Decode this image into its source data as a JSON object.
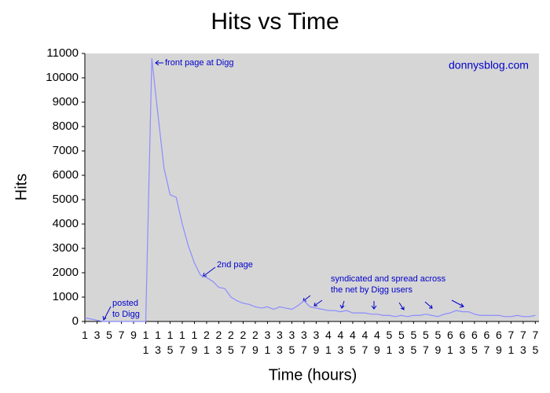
{
  "chart_data": {
    "type": "line",
    "title": "Hits vs Time",
    "x_label": "Time (hours)",
    "y_label": "Hits",
    "x": [
      1,
      2,
      3,
      4,
      5,
      6,
      7,
      8,
      9,
      10,
      11,
      12,
      13,
      14,
      15,
      16,
      17,
      18,
      19,
      20,
      21,
      22,
      23,
      24,
      25,
      26,
      27,
      28,
      29,
      30,
      31,
      32,
      33,
      34,
      35,
      36,
      37,
      38,
      39,
      40,
      41,
      42,
      43,
      44,
      45,
      46,
      47,
      48,
      49,
      50,
      51,
      52,
      53,
      54,
      55,
      56,
      57,
      58,
      59,
      60,
      61,
      62,
      63,
      64,
      65,
      66,
      67,
      68,
      69,
      70,
      71,
      72,
      73,
      74,
      75
    ],
    "values": [
      150,
      100,
      50,
      0,
      0,
      0,
      0,
      0,
      0,
      0,
      0,
      10800,
      8500,
      6300,
      5200,
      5100,
      4000,
      3100,
      2400,
      1900,
      1800,
      1650,
      1400,
      1350,
      1000,
      850,
      750,
      700,
      600,
      550,
      600,
      500,
      600,
      550,
      500,
      650,
      850,
      600,
      550,
      500,
      450,
      450,
      400,
      450,
      350,
      350,
      350,
      300,
      300,
      250,
      250,
      200,
      250,
      200,
      250,
      250,
      300,
      250,
      200,
      300,
      350,
      450,
      400,
      400,
      300,
      250,
      250,
      250,
      250,
      200,
      200,
      250,
      200,
      200,
      250
    ],
    "color": "#8c8cff",
    "xlim": [
      1,
      75.6
    ],
    "ylim": [
      0,
      11000
    ],
    "xticks": [
      1,
      3,
      5,
      7,
      9,
      11,
      13,
      15,
      17,
      19,
      21,
      23,
      25,
      27,
      29,
      31,
      33,
      35,
      37,
      39,
      41,
      43,
      45,
      47,
      49,
      51,
      53,
      55,
      57,
      59,
      61,
      63,
      65,
      67,
      69,
      71,
      73,
      75
    ],
    "yticks": [
      0,
      1000,
      2000,
      3000,
      4000,
      5000,
      6000,
      7000,
      8000,
      9000,
      10000,
      11000
    ],
    "grid": false,
    "annotations": [
      {
        "lines": [
          "front page at Digg"
        ]
      },
      {
        "lines": [
          "2nd page"
        ]
      },
      {
        "lines": [
          "posted",
          "to Digg"
        ]
      },
      {
        "lines": [
          "syndicated and spread across",
          "the net by Digg users"
        ]
      },
      {
        "lines": [
          "donnysblog.com"
        ]
      }
    ]
  }
}
